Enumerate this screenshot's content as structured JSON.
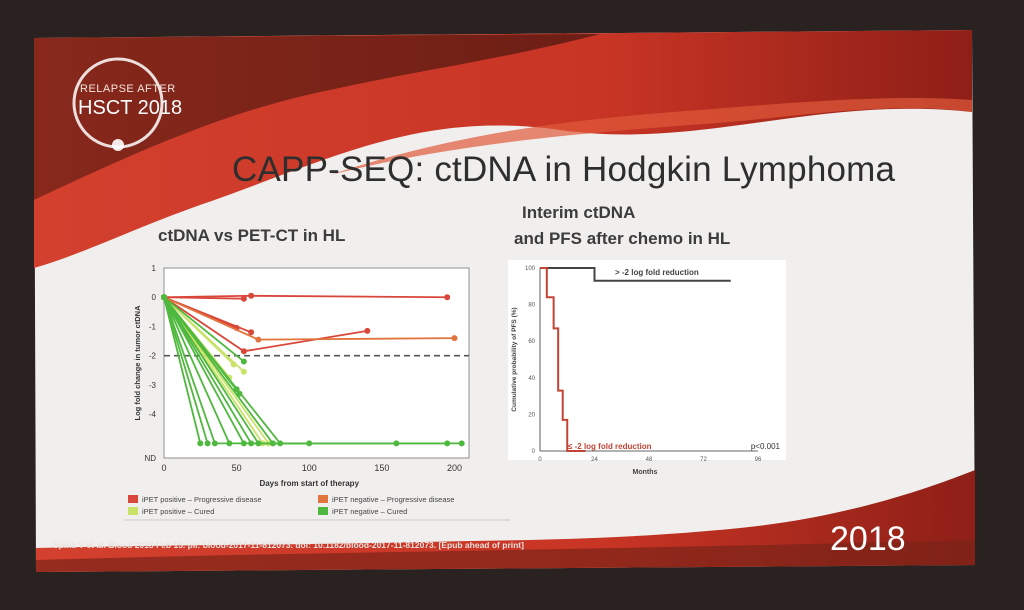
{
  "slide": {
    "title": "CAPP-SEQ: ctDNA in Hodgkin Lymphoma",
    "logo_line1": "RELAPSE AFTER",
    "logo_line2": "HSCT 2018",
    "year": "2018",
    "citation": "Spina V et al. Blood 2018 Feb 15. pii: blood-2017-11-812073. doi: 10.1182/blood-2017-11-812073. [Epub ahead of print]",
    "left_panel_title": "ctDNA vs PET-CT in HL",
    "right_panel_title_line1": "Interim ctDNA",
    "right_panel_title_line2": "and PFS after chemo in HL"
  },
  "colors": {
    "ipet_pos_progressive": "#d9473a",
    "ipet_neg_progressive": "#e2743e",
    "ipet_pos_cured": "#c9e36a",
    "ipet_neg_cured": "#4fb83e",
    "threshold_line": "#555555",
    "curve_greater": "#444444",
    "curve_less": "#c44434"
  },
  "chart_data": [
    {
      "type": "line",
      "title": "ctDNA vs PET-CT in HL",
      "xlabel": "Days from start of therapy",
      "ylabel": "Log fold change in tumor ctDNA",
      "xlim": [
        0,
        210
      ],
      "ylim": [
        -5.5,
        1
      ],
      "x_ticks": [
        "0",
        "50",
        "100",
        "150",
        "200"
      ],
      "y_ticks": [
        "1",
        "0",
        "-1",
        "-2",
        "-3",
        "-4",
        "ND"
      ],
      "threshold_y": -2,
      "legend_position": "bottom",
      "legend": [
        {
          "label": "iPET positive – Progressive disease",
          "color_key": "ipet_pos_progressive"
        },
        {
          "label": "iPET negative – Progressive disease",
          "color_key": "ipet_neg_progressive"
        },
        {
          "label": "iPET positive – Cured",
          "color_key": "ipet_pos_cured"
        },
        {
          "label": "iPET negative – Cured",
          "color_key": "ipet_neg_cured"
        }
      ],
      "series": [
        {
          "group": "ipet_pos_progressive",
          "x": [
            0,
            60,
            195
          ],
          "y": [
            0,
            0.05,
            0
          ]
        },
        {
          "group": "ipet_pos_progressive",
          "x": [
            0,
            55
          ],
          "y": [
            0,
            -0.05
          ]
        },
        {
          "group": "ipet_pos_progressive",
          "x": [
            0,
            60
          ],
          "y": [
            0,
            -1.2
          ]
        },
        {
          "group": "ipet_pos_progressive",
          "x": [
            0,
            50
          ],
          "y": [
            0,
            -1.05
          ]
        },
        {
          "group": "ipet_pos_progressive",
          "x": [
            0,
            55,
            140
          ],
          "y": [
            0,
            -1.85,
            -1.15
          ]
        },
        {
          "group": "ipet_neg_progressive",
          "x": [
            0,
            65,
            200
          ],
          "y": [
            0,
            -1.45,
            -1.4
          ]
        },
        {
          "group": "ipet_pos_cured",
          "x": [
            0,
            48
          ],
          "y": [
            0,
            -2.3
          ]
        },
        {
          "group": "ipet_pos_cured",
          "x": [
            0,
            55
          ],
          "y": [
            0,
            -2.55
          ]
        },
        {
          "group": "ipet_pos_cured",
          "x": [
            0,
            45
          ],
          "y": [
            0,
            -2.75
          ]
        },
        {
          "group": "ipet_pos_cured",
          "x": [
            0,
            68
          ],
          "y": [
            0,
            -5.0
          ]
        },
        {
          "group": "ipet_pos_cured",
          "x": [
            0,
            72
          ],
          "y": [
            0,
            -5.0
          ]
        },
        {
          "group": "ipet_neg_cured",
          "x": [
            0,
            55
          ],
          "y": [
            0,
            -2.2
          ]
        },
        {
          "group": "ipet_neg_cured",
          "x": [
            0,
            50
          ],
          "y": [
            0,
            -3.15
          ]
        },
        {
          "group": "ipet_neg_cured",
          "x": [
            0,
            52
          ],
          "y": [
            0,
            -3.3
          ]
        },
        {
          "group": "ipet_neg_cured",
          "x": [
            0,
            30
          ],
          "y": [
            0,
            -5.0
          ]
        },
        {
          "group": "ipet_neg_cured",
          "x": [
            0,
            45
          ],
          "y": [
            0,
            -5.0
          ]
        },
        {
          "group": "ipet_neg_cured",
          "x": [
            0,
            55
          ],
          "y": [
            0,
            -5.0
          ]
        },
        {
          "group": "ipet_neg_cured",
          "x": [
            0,
            60,
            100
          ],
          "y": [
            0,
            -5.0,
            -5.0
          ]
        },
        {
          "group": "ipet_neg_cured",
          "x": [
            0,
            75,
            160
          ],
          "y": [
            0,
            -5.0,
            -5.0
          ]
        },
        {
          "group": "ipet_neg_cured",
          "x": [
            0,
            35,
            195
          ],
          "y": [
            0,
            -5.0,
            -5.0
          ]
        },
        {
          "group": "ipet_neg_cured",
          "x": [
            0,
            65,
            205
          ],
          "y": [
            0,
            -5.0,
            -5.0
          ]
        },
        {
          "group": "ipet_neg_cured",
          "x": [
            0,
            80
          ],
          "y": [
            0,
            -5.0
          ]
        },
        {
          "group": "ipet_neg_cured",
          "x": [
            0,
            25
          ],
          "y": [
            0,
            -5.0
          ]
        }
      ]
    },
    {
      "type": "line",
      "title": "Interim ctDNA and PFS after chemo in HL",
      "xlabel": "Months",
      "ylabel": "Cumulative probability of PFS (%)",
      "xlim": [
        0,
        96
      ],
      "ylim": [
        0,
        100
      ],
      "x_ticks": [
        "0",
        "24",
        "48",
        "72",
        "96"
      ],
      "y_ticks": [
        "100",
        "80",
        "60",
        "40",
        "20",
        "0"
      ],
      "annotations": [
        "p<0.001"
      ],
      "series": [
        {
          "name": "> -2 log fold reduction",
          "color_key": "curve_greater",
          "x": [
            0,
            24,
            24,
            84
          ],
          "y": [
            100,
            100,
            93,
            93
          ]
        },
        {
          "name": "≤ -2 log fold reduction",
          "color_key": "curve_less",
          "x": [
            0,
            3,
            3,
            6,
            6,
            8,
            8,
            10,
            10,
            12,
            12,
            15,
            15,
            20
          ],
          "y": [
            100,
            100,
            84,
            84,
            67,
            67,
            33,
            33,
            17,
            17,
            0,
            0,
            0,
            0
          ]
        }
      ]
    }
  ]
}
